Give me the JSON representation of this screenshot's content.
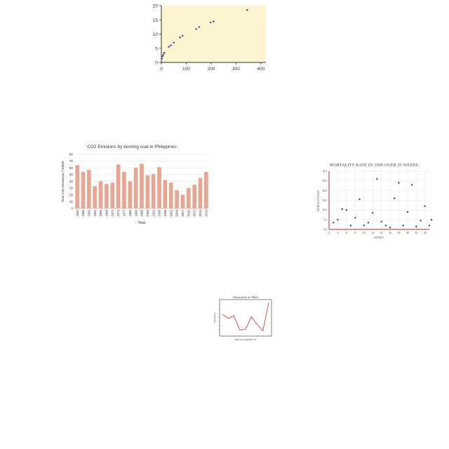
{
  "chart_data": [
    {
      "type": "scatter",
      "background": "#fdf5cf",
      "point_color": "#5a4fa0",
      "x": [
        2,
        5,
        8,
        12,
        30,
        38,
        50,
        75,
        85,
        140,
        152,
        198,
        210,
        345
      ],
      "y": [
        1.4,
        2.2,
        2.8,
        3.4,
        5.5,
        6.0,
        7.0,
        8.8,
        9.4,
        11.8,
        12.5,
        14.1,
        14.4,
        18.5
      ],
      "xlim": [
        0,
        420
      ],
      "ylim": [
        0,
        20
      ],
      "xticks": [
        "0",
        "100",
        "200",
        "300",
        "400"
      ],
      "yticks": [
        "0",
        "5",
        "10",
        "15",
        "20"
      ],
      "title": "",
      "xlabel": "",
      "ylabel": ""
    },
    {
      "type": "bar",
      "title": "CO2 Emisions by burning coal in Philippines",
      "xlabel": "Year",
      "ylabel": "Total CO2 Emissions (*10000",
      "bar_color": "#e8a592",
      "ylim": [
        0,
        80
      ],
      "yticks": [
        "0",
        "10",
        "20",
        "30",
        "40",
        "50",
        "60",
        "70",
        "80"
      ],
      "grid": true,
      "categories": [
        "1953",
        "1956",
        "1959",
        "1962",
        "1965",
        "1968",
        "1971",
        "1974",
        "1977",
        "1980",
        "1983",
        "1986",
        "1989",
        "1992",
        "1995",
        "1998",
        "2001",
        "2004",
        "2007",
        "2010",
        "2013",
        "2016",
        "2019"
      ],
      "values": [
        64,
        54,
        57,
        33,
        40,
        36,
        38,
        65,
        54,
        40,
        60,
        66,
        49,
        51,
        61,
        42,
        38,
        27,
        20,
        30,
        35,
        45,
        54
      ]
    },
    {
      "type": "scatter",
      "title": "MORTALITY RATE IN 1990 OVER 25 WEEKS",
      "xlabel": "WEEKS",
      "ylabel": "MORTALITY RATE",
      "point_color": "#444444",
      "axis_color": "#cc2222",
      "grid": true,
      "xlim": [
        2,
        25
      ],
      "ylim": [
        0,
        30
      ],
      "xticks": [
        "2",
        "4",
        "6",
        "8",
        "10",
        "12",
        "14",
        "16",
        "18",
        "20",
        "22",
        "24"
      ],
      "yticks": [
        "0.0",
        "5.0",
        "10.0",
        "15.0",
        "20.0",
        "25.0",
        "30.0"
      ],
      "x": [
        3,
        4,
        5,
        6,
        7,
        8,
        9,
        10,
        11,
        12,
        13,
        14,
        15,
        16,
        17,
        18,
        19,
        20,
        21,
        22,
        23,
        24,
        25,
        25.5
      ],
      "y": [
        3.5,
        5.0,
        10.5,
        10.0,
        2.0,
        6.0,
        15.5,
        2.0,
        3.5,
        8.5,
        26.0,
        4.0,
        2.0,
        1.0,
        16.0,
        24.0,
        2.0,
        9.0,
        23.0,
        1.5,
        4.5,
        12.0,
        2.0,
        5.0
      ]
    },
    {
      "type": "line",
      "title": "Stock price of TNDX",
      "xlabel": "Date since 2016-01-01",
      "ylabel": "Stock price",
      "line_color": "#d94040",
      "x": [
        1,
        2,
        3,
        4,
        5,
        6,
        7,
        8,
        9
      ],
      "y": [
        45,
        40,
        43,
        25,
        26,
        42,
        32,
        24,
        60
      ],
      "ylim": [
        20,
        62
      ]
    }
  ]
}
